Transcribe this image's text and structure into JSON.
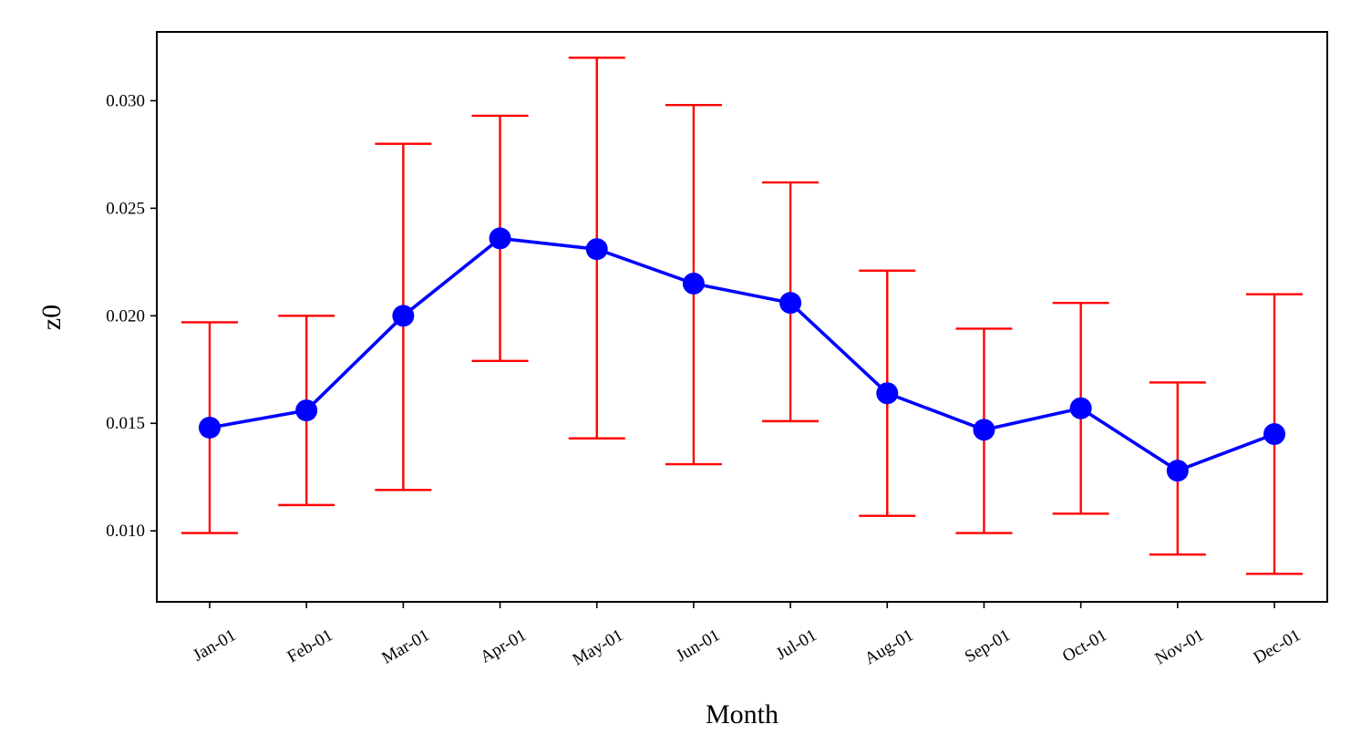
{
  "chart_data": {
    "type": "line",
    "xlabel": "Month",
    "ylabel": "z0",
    "categories": [
      "Jan-01",
      "Feb-01",
      "Mar-01",
      "Apr-01",
      "May-01",
      "Jun-01",
      "Jul-01",
      "Aug-01",
      "Sep-01",
      "Oct-01",
      "Nov-01",
      "Dec-01"
    ],
    "ylim": [
      0.0067,
      0.0332
    ],
    "yticks": [
      0.01,
      0.015,
      0.02,
      0.025,
      0.03
    ],
    "ytick_labels": [
      "0.010",
      "0.015",
      "0.020",
      "0.025",
      "0.030"
    ],
    "grid": false,
    "series": [
      {
        "values": [
          0.0148,
          0.0156,
          0.02,
          0.0236,
          0.0231,
          0.0215,
          0.0206,
          0.0164,
          0.0147,
          0.0157,
          0.0128,
          0.0145
        ],
        "error_low": [
          0.0099,
          0.0112,
          0.0119,
          0.0179,
          0.0143,
          0.0131,
          0.0151,
          0.0107,
          0.0099,
          0.0108,
          0.0089,
          0.008
        ],
        "error_high": [
          0.0197,
          0.02,
          0.028,
          0.0293,
          0.032,
          0.0298,
          0.0262,
          0.0221,
          0.0194,
          0.0206,
          0.0169,
          0.021
        ],
        "line_color": "#0000ff",
        "marker_color": "#0000ff",
        "error_color": "#ff0000"
      }
    ]
  }
}
